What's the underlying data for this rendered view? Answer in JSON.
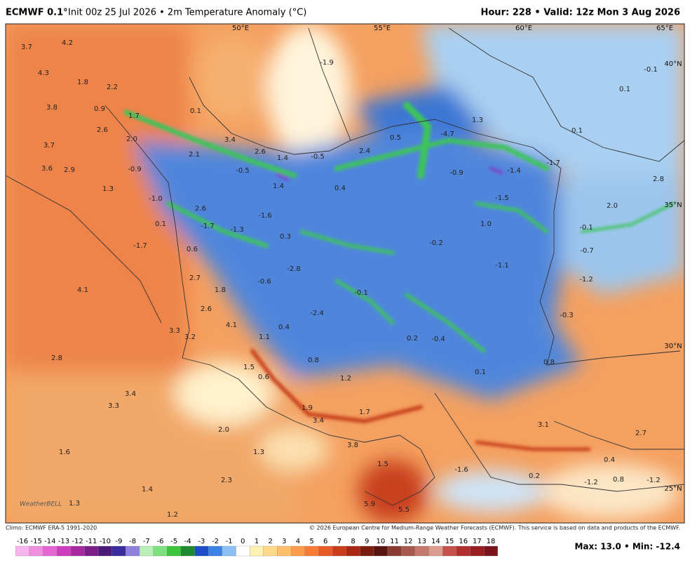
{
  "header": {
    "model": "ECMWF 0.1°",
    "title": "Init 00z 25 Jul 2026 • 2m Temperature Anomaly (°C)",
    "valid": "Hour: 228 • Valid: 12z Mon 3 Aug 2026"
  },
  "map": {
    "grid_labels": [
      "50°E",
      "55°E",
      "60°E",
      "65°E",
      "40°N",
      "35°N",
      "30°N",
      "25°N"
    ],
    "anomaly_labels": [
      "3.7",
      "4.2",
      "4.3",
      "1.8",
      "2.2",
      "3.8",
      "0.9",
      "1.7",
      "0.1",
      "2.6",
      "2.0",
      "3.7",
      "3.4",
      "2.6",
      "1.4",
      "-0.5",
      "2.4",
      "0.5",
      "-4.7",
      "1.3",
      "2.1",
      "3.6",
      "2.9",
      "-0.9",
      "-0.5",
      "1.4",
      "0.4",
      "-0.9",
      "-1.4",
      "-1.7",
      "2.8",
      "1.3",
      "-1.0",
      "-1.5",
      "2.0",
      "2.6",
      "0.1",
      "-1.7",
      "-1.3",
      "-1.6",
      "0.3",
      "1.0",
      "-0.1",
      "-0.2",
      "-1.7",
      "0.6",
      "-0.7",
      "-1.1",
      "-2.8",
      "2.7",
      "-1.2",
      "1.8",
      "-0.6",
      "-0.1",
      "4.1",
      "2.6",
      "-2.4",
      "-0.3",
      "4.1",
      "0.4",
      "3.3",
      "3.2",
      "1.1",
      "0.2",
      "-0.4",
      "2.8",
      "0.8",
      "1.5",
      "0.6",
      "0.1",
      "0.8",
      "1.2",
      "3.4",
      "3.3",
      "1.9",
      "1.7",
      "3.4",
      "3.1",
      "2.7",
      "2.0",
      "3.8",
      "1.3",
      "1.6",
      "1.5",
      "-1.6",
      "0.4",
      "0.2",
      "2.3",
      "1.4",
      "-1.2",
      "0.8",
      "-1.2",
      "1.3",
      "1.2",
      "5.5",
      "5.9",
      "-1.9",
      "0.1",
      "0.1",
      "-0.1"
    ],
    "logo": "WeatherBELL"
  },
  "footer": {
    "climo": "Climo: ECMWF ERA-5 1991-2020",
    "credit": "© 2026 European Centre for Medium-Range Weather Forecasts (ECMWF). This service is based on data and products of the ECMWF.",
    "extremes": "Max: 13.0 • Min: -12.4"
  },
  "colorbar": {
    "ticks": [
      -16,
      -15,
      -14,
      -13,
      -12,
      -11,
      -10,
      -9,
      -8,
      -7,
      -6,
      -5,
      -4,
      -3,
      -2,
      -1,
      0,
      1,
      2,
      3,
      4,
      5,
      6,
      7,
      8,
      9,
      10,
      11,
      12,
      13,
      14,
      15,
      16,
      17,
      18
    ],
    "colors": [
      "#f8b4ec",
      "#f08ee0",
      "#e466d2",
      "#cc3cbc",
      "#a82aa0",
      "#7c1e88",
      "#4c1a78",
      "#3a2c9c",
      "#8f80dc",
      "#b8f0b8",
      "#7fe07f",
      "#3cc43c",
      "#1e8c2e",
      "#1f4fc8",
      "#3c82e6",
      "#8cc0f4",
      "#ffffff",
      "#fff2b0",
      "#ffd98a",
      "#ffbe6a",
      "#ff9c4c",
      "#f77a36",
      "#e85a28",
      "#cc3c1c",
      "#a82814",
      "#7a1c10",
      "#5a1410",
      "#8a3a30",
      "#a8584c",
      "#c47a6c",
      "#dc9c8e",
      "#c8504c",
      "#b03030",
      "#981e22",
      "#7a141a"
    ]
  }
}
